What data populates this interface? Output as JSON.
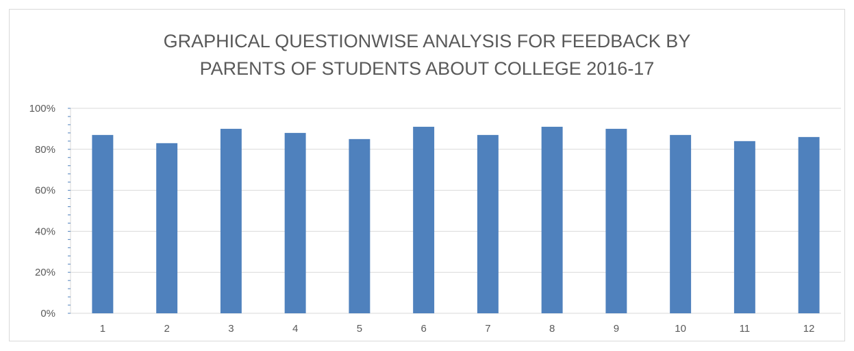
{
  "chart_data": {
    "type": "bar",
    "title_lines": [
      "GRAPHICAL QUESTIONWISE ANALYSIS FOR FEEDBACK BY",
      "PARENTS OF STUDENTS ABOUT COLLEGE 2016-17"
    ],
    "categories": [
      "1",
      "2",
      "3",
      "4",
      "5",
      "6",
      "7",
      "8",
      "9",
      "10",
      "11",
      "12"
    ],
    "values": [
      87,
      83,
      90,
      88,
      85,
      91,
      87,
      91,
      90,
      87,
      84,
      86
    ],
    "value_unit": "%",
    "ylim": [
      0,
      100
    ],
    "yticks": [
      0,
      20,
      40,
      60,
      80,
      100
    ],
    "ytick_labels": [
      "0%",
      "20%",
      "40%",
      "60%",
      "80%",
      "100%"
    ],
    "grid": true,
    "legend": "none",
    "bar_color": "#4f81bd",
    "grid_color": "#d9d9d9",
    "text_color": "#595959"
  }
}
